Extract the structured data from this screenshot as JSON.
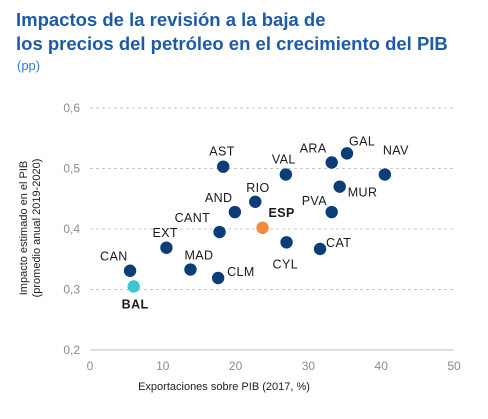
{
  "title_lines": [
    "Impactos de la revisión a la baja de",
    "los precios del petróleo en el crecimiento del PIB"
  ],
  "subtitle": "(pp)",
  "chart_data": {
    "type": "scatter",
    "xlabel": "Exportaciones sobre PIB (2017, %)",
    "ylabel_lines": [
      "Impacto estimado en el PIB",
      "(promedio anual 2019-2020)"
    ],
    "xlim": [
      0,
      50
    ],
    "ylim": [
      0.2,
      0.6
    ],
    "x_ticks": [
      0,
      10,
      20,
      30,
      40,
      50
    ],
    "y_ticks": [
      0.2,
      0.3,
      0.4,
      0.5,
      0.6
    ],
    "y_tick_labels": [
      "0,2",
      "0,3",
      "0,4",
      "0,5",
      "0,6"
    ],
    "grid": "horizontal dashed",
    "colors": {
      "default": "#0b3d78",
      "ESP": "#f5883b",
      "BAL": "#3cc6cf"
    },
    "points": [
      {
        "label": "CAN",
        "x": 5.5,
        "y": 0.331,
        "color": "#0b3d78",
        "bold": false
      },
      {
        "label": "BAL",
        "x": 6.0,
        "y": 0.305,
        "color": "#3cc6cf",
        "bold": true
      },
      {
        "label": "EXT",
        "x": 10.5,
        "y": 0.369,
        "color": "#0b3d78",
        "bold": false
      },
      {
        "label": "MAD",
        "x": 13.8,
        "y": 0.333,
        "color": "#0b3d78",
        "bold": false
      },
      {
        "label": "CLM",
        "x": 17.6,
        "y": 0.319,
        "color": "#0b3d78",
        "bold": false
      },
      {
        "label": "CANT",
        "x": 17.8,
        "y": 0.395,
        "color": "#0b3d78",
        "bold": false
      },
      {
        "label": "AST",
        "x": 18.3,
        "y": 0.503,
        "color": "#0b3d78",
        "bold": false
      },
      {
        "label": "AND",
        "x": 19.9,
        "y": 0.428,
        "color": "#0b3d78",
        "bold": false
      },
      {
        "label": "RIO",
        "x": 22.7,
        "y": 0.445,
        "color": "#0b3d78",
        "bold": false
      },
      {
        "label": "ESP",
        "x": 23.7,
        "y": 0.402,
        "color": "#f5883b",
        "bold": true
      },
      {
        "label": "VAL",
        "x": 26.9,
        "y": 0.49,
        "color": "#0b3d78",
        "bold": false
      },
      {
        "label": "CYL",
        "x": 27.0,
        "y": 0.378,
        "color": "#0b3d78",
        "bold": false
      },
      {
        "label": "CAT",
        "x": 31.6,
        "y": 0.367,
        "color": "#0b3d78",
        "bold": false
      },
      {
        "label": "PVA",
        "x": 33.2,
        "y": 0.428,
        "color": "#0b3d78",
        "bold": false
      },
      {
        "label": "ARA",
        "x": 33.2,
        "y": 0.51,
        "color": "#0b3d78",
        "bold": false
      },
      {
        "label": "MUR",
        "x": 34.3,
        "y": 0.47,
        "color": "#0b3d78",
        "bold": false
      },
      {
        "label": "GAL",
        "x": 35.3,
        "y": 0.525,
        "color": "#0b3d78",
        "bold": false
      },
      {
        "label": "NAV",
        "x": 40.5,
        "y": 0.49,
        "color": "#0b3d78",
        "bold": false
      }
    ]
  }
}
